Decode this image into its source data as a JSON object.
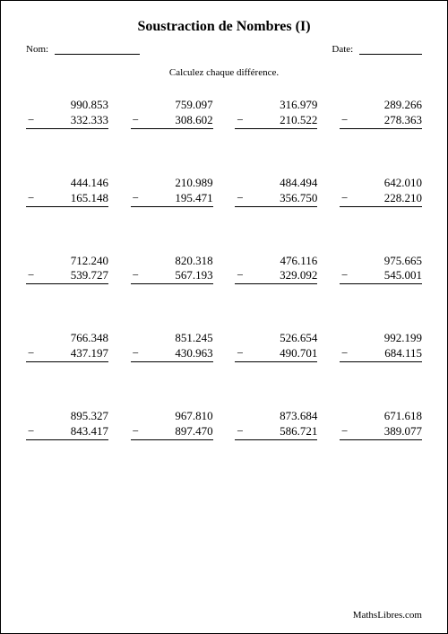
{
  "title": "Soustraction de Nombres (I)",
  "labels": {
    "name": "Nom:",
    "date": "Date:"
  },
  "instruction": "Calculez chaque différence.",
  "minus_sign": "−",
  "problems": [
    [
      {
        "a": "990.853",
        "b": "332.333"
      },
      {
        "a": "759.097",
        "b": "308.602"
      },
      {
        "a": "316.979",
        "b": "210.522"
      },
      {
        "a": "289.266",
        "b": "278.363"
      }
    ],
    [
      {
        "a": "444.146",
        "b": "165.148"
      },
      {
        "a": "210.989",
        "b": "195.471"
      },
      {
        "a": "484.494",
        "b": "356.750"
      },
      {
        "a": "642.010",
        "b": "228.210"
      }
    ],
    [
      {
        "a": "712.240",
        "b": "539.727"
      },
      {
        "a": "820.318",
        "b": "567.193"
      },
      {
        "a": "476.116",
        "b": "329.092"
      },
      {
        "a": "975.665",
        "b": "545.001"
      }
    ],
    [
      {
        "a": "766.348",
        "b": "437.197"
      },
      {
        "a": "851.245",
        "b": "430.963"
      },
      {
        "a": "526.654",
        "b": "490.701"
      },
      {
        "a": "992.199",
        "b": "684.115"
      }
    ],
    [
      {
        "a": "895.327",
        "b": "843.417"
      },
      {
        "a": "967.810",
        "b": "897.470"
      },
      {
        "a": "873.684",
        "b": "586.721"
      },
      {
        "a": "671.618",
        "b": "389.077"
      }
    ]
  ],
  "footer": "MathsLibres.com",
  "style": {
    "text_color": "#000000",
    "background_color": "#ffffff",
    "title_fontsize": 16,
    "body_fontsize": 13,
    "small_fontsize": 11,
    "font_family": "Times New Roman"
  }
}
